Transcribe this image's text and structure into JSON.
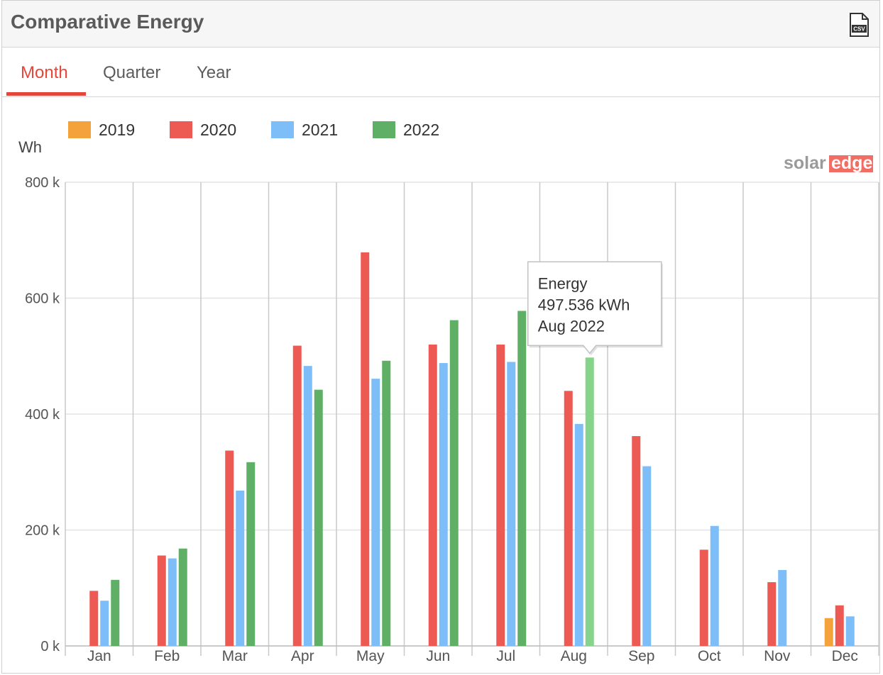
{
  "header": {
    "title": "Comparative Energy",
    "csv_icon": "csv-file-icon",
    "csv_label": "CSV"
  },
  "tabs": [
    {
      "label": "Month",
      "active": true
    },
    {
      "label": "Quarter",
      "active": false
    },
    {
      "label": "Year",
      "active": false
    }
  ],
  "brand": {
    "solar": "solar",
    "edge": "edge"
  },
  "colors": {
    "accent": "#e5463a",
    "2019": "#f4a33c",
    "2020": "#ec5a53",
    "2021": "#7dbdf8",
    "2022": "#5fb066",
    "highlight_2022": "#86d38c"
  },
  "chart_data": {
    "type": "bar",
    "ylabel": "Wh",
    "ylim": [
      0,
      800000
    ],
    "yticks": [
      0,
      200000,
      400000,
      600000,
      800000
    ],
    "ytick_labels": [
      "0 k",
      "200 k",
      "400 k",
      "600 k",
      "800 k"
    ],
    "categories": [
      "Jan",
      "Feb",
      "Mar",
      "Apr",
      "May",
      "Jun",
      "Jul",
      "Aug",
      "Sep",
      "Oct",
      "Nov",
      "Dec"
    ],
    "legend_position": "top-left",
    "grid": true,
    "series": [
      {
        "name": "2019",
        "values": [
          null,
          null,
          null,
          null,
          null,
          null,
          null,
          null,
          null,
          null,
          null,
          48000
        ]
      },
      {
        "name": "2020",
        "values": [
          95000,
          156000,
          337000,
          518000,
          679000,
          520000,
          520000,
          440000,
          362000,
          166000,
          110000,
          70000
        ]
      },
      {
        "name": "2021",
        "values": [
          78000,
          151000,
          268000,
          483000,
          461000,
          488000,
          490000,
          383000,
          310000,
          207000,
          131000,
          51000
        ]
      },
      {
        "name": "2022",
        "values": [
          114000,
          168000,
          317000,
          442000,
          492000,
          562000,
          578000,
          497536,
          null,
          null,
          null,
          null
        ]
      }
    ],
    "tooltip": {
      "series": "2022",
      "category": "Aug",
      "line1": "Energy",
      "line2": "497.536 kWh",
      "line3": "Aug 2022"
    }
  }
}
